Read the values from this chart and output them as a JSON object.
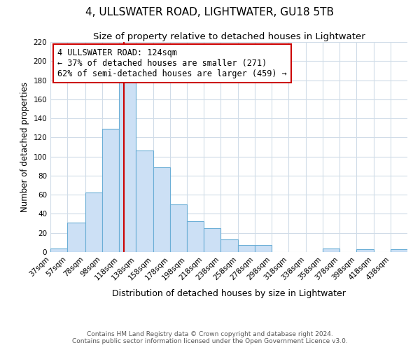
{
  "title": "4, ULLSWATER ROAD, LIGHTWATER, GU18 5TB",
  "subtitle": "Size of property relative to detached houses in Lightwater",
  "xlabel": "Distribution of detached houses by size in Lightwater",
  "ylabel": "Number of detached properties",
  "bar_left_edges": [
    37,
    57,
    78,
    98,
    118,
    138,
    158,
    178,
    198,
    218,
    238,
    258,
    278,
    298,
    318,
    338,
    358,
    378,
    398,
    418,
    438
  ],
  "bar_heights": [
    4,
    31,
    62,
    129,
    181,
    106,
    89,
    50,
    32,
    25,
    13,
    7,
    7,
    0,
    0,
    0,
    4,
    0,
    3,
    0,
    3
  ],
  "bar_widths": [
    20,
    21,
    20,
    20,
    20,
    20,
    20,
    20,
    20,
    20,
    20,
    20,
    20,
    20,
    20,
    20,
    20,
    20,
    20,
    20,
    20
  ],
  "bar_color": "#cce0f5",
  "bar_edgecolor": "#6baed6",
  "vline_x": 124,
  "vline_color": "#cc0000",
  "ylim": [
    0,
    220
  ],
  "yticks": [
    0,
    20,
    40,
    60,
    80,
    100,
    120,
    140,
    160,
    180,
    200,
    220
  ],
  "xtick_labels": [
    "37sqm",
    "57sqm",
    "78sqm",
    "98sqm",
    "118sqm",
    "138sqm",
    "158sqm",
    "178sqm",
    "198sqm",
    "218sqm",
    "238sqm",
    "258sqm",
    "278sqm",
    "298sqm",
    "318sqm",
    "338sqm",
    "358sqm",
    "378sqm",
    "398sqm",
    "418sqm",
    "438sqm"
  ],
  "xtick_positions": [
    37,
    57,
    78,
    98,
    118,
    138,
    158,
    178,
    198,
    218,
    238,
    258,
    278,
    298,
    318,
    338,
    358,
    378,
    398,
    418,
    438
  ],
  "annotation_text": "4 ULLSWATER ROAD: 124sqm\n← 37% of detached houses are smaller (271)\n62% of semi-detached houses are larger (459) →",
  "footer_text1": "Contains HM Land Registry data © Crown copyright and database right 2024.",
  "footer_text2": "Contains public sector information licensed under the Open Government Licence v3.0.",
  "bg_color": "#ffffff",
  "grid_color": "#d0dce8",
  "title_fontsize": 11,
  "subtitle_fontsize": 9.5,
  "xlabel_fontsize": 9,
  "ylabel_fontsize": 8.5,
  "tick_fontsize": 7.5,
  "annotation_fontsize": 8.5,
  "footer_fontsize": 6.5
}
